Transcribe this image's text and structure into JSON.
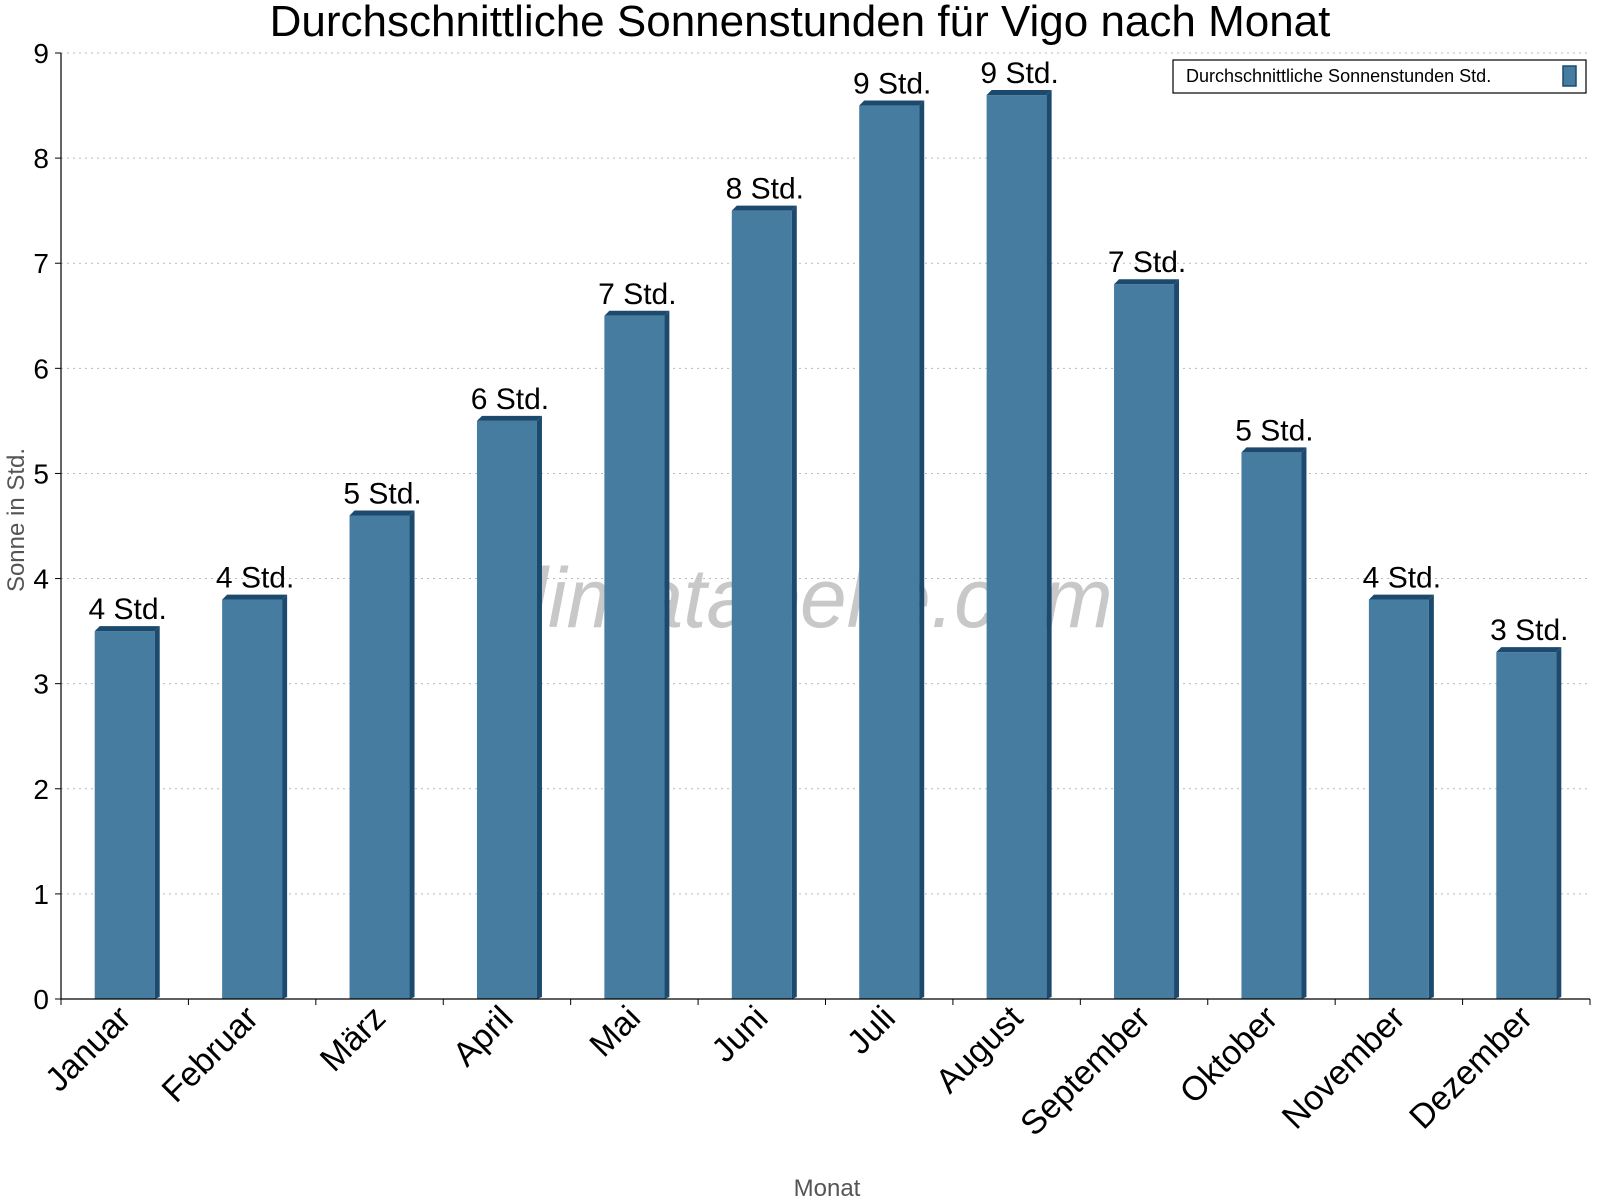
{
  "chart_data": {
    "type": "bar",
    "title": "Durchschnittliche Sonnenstunden für Vigo nach Monat",
    "xlabel": "Monat",
    "ylabel": "Sonne in Std.",
    "categories": [
      "Januar",
      "Februar",
      "März",
      "April",
      "Mai",
      "Juni",
      "Juli",
      "August",
      "September",
      "Oktober",
      "November",
      "Dezember"
    ],
    "series": [
      {
        "name": "Durchschnittliche Sonnenstunden Std.",
        "values": [
          3.5,
          3.8,
          4.6,
          5.5,
          6.5,
          7.5,
          8.5,
          8.6,
          6.8,
          5.2,
          3.8,
          3.3
        ],
        "labels": [
          "4 Std.",
          "4 Std.",
          "5 Std.",
          "6 Std.",
          "7 Std.",
          "8 Std.",
          "9 Std.",
          "9 Std.",
          "7 Std.",
          "5 Std.",
          "4 Std.",
          "3 Std."
        ]
      }
    ],
    "ylim": [
      0,
      9
    ],
    "yticks": [
      0,
      1,
      2,
      3,
      4,
      5,
      6,
      7,
      8,
      9
    ],
    "grid": true,
    "legend_position": "top-right",
    "colors": {
      "bar": "#467ca0",
      "bar_edge": "#1c4a6e"
    }
  },
  "watermark": "klimatabelle.com"
}
